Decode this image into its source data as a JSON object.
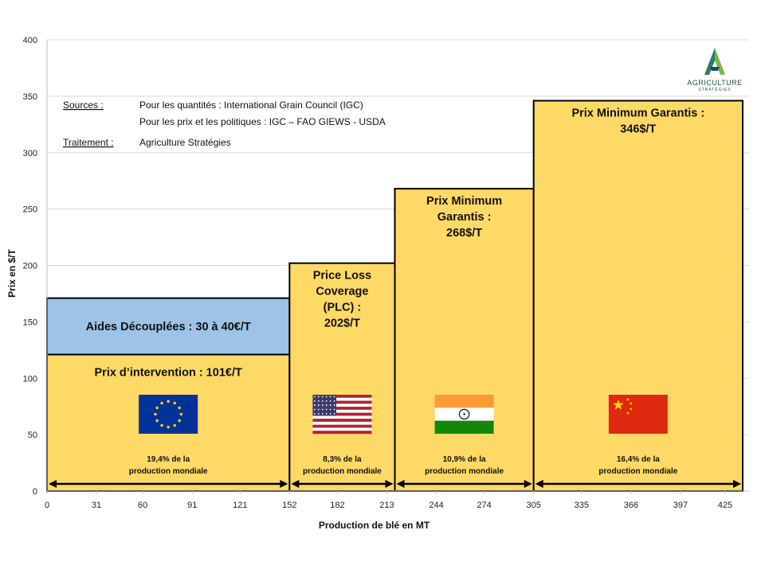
{
  "chart_data": {
    "type": "bar",
    "xlabel": "Production de blé en MT",
    "ylabel": "Prix en $/T",
    "xlim": [
      0,
      440
    ],
    "ylim": [
      0,
      400
    ],
    "x_ticks": [
      0,
      31,
      60,
      91,
      121,
      152,
      182,
      213,
      244,
      274,
      305,
      335,
      366,
      397,
      425
    ],
    "y_ticks": [
      0,
      50,
      100,
      150,
      200,
      250,
      300,
      350,
      400
    ],
    "grid": "horizontal",
    "colors": {
      "price_fill": "#FFD966",
      "aid_fill": "#9DC3E6",
      "outline": "#000000",
      "grid": "#d9d9d9"
    },
    "bars": [
      {
        "country": "Union européenne",
        "flag": "eu-flag-icon",
        "x_start": 0,
        "x_end": 152,
        "value": 121,
        "label": [
          "Prix d’intervention : 101€/T"
        ],
        "share": [
          "19,4% de la",
          "production mondiale"
        ],
        "extra": {
          "value_top": 171,
          "label": "Aides Découplées : 30 à 40€/T"
        }
      },
      {
        "country": "États-Unis",
        "flag": "usa-flag-icon",
        "x_start": 152,
        "x_end": 218,
        "value": 202,
        "label": [
          "Price Loss",
          "Coverage",
          "(PLC) :",
          "202$/T"
        ],
        "share": [
          "8,3% de la",
          "production mondiale"
        ]
      },
      {
        "country": "Inde",
        "flag": "india-flag-icon",
        "x_start": 218,
        "x_end": 305,
        "value": 268,
        "label": [
          "Prix Minimum",
          "Garantis :",
          "268$/T"
        ],
        "share": [
          "10,9% de la",
          "production mondiale"
        ]
      },
      {
        "country": "Chine",
        "flag": "china-flag-icon",
        "x_start": 305,
        "x_end": 436,
        "value": 346,
        "label": [
          "Prix Minimum Garantis :",
          "346$/T"
        ],
        "share": [
          "16,4% de la",
          "production mondiale"
        ]
      }
    ]
  },
  "sources": {
    "sources_label": "Sources :",
    "line1": "Pour les quantités : International Grain Council (IGC)",
    "line2": "Pour les prix et les politiques : IGC – FAO GIEWS - USDA",
    "treatment_label": "Traitement :",
    "treatment_value": "Agriculture Stratégies"
  },
  "logo": {
    "name": "AGRICULTURE",
    "sub": "STRATÉGIES",
    "icon": "agriculture-strategies-logo-icon"
  }
}
